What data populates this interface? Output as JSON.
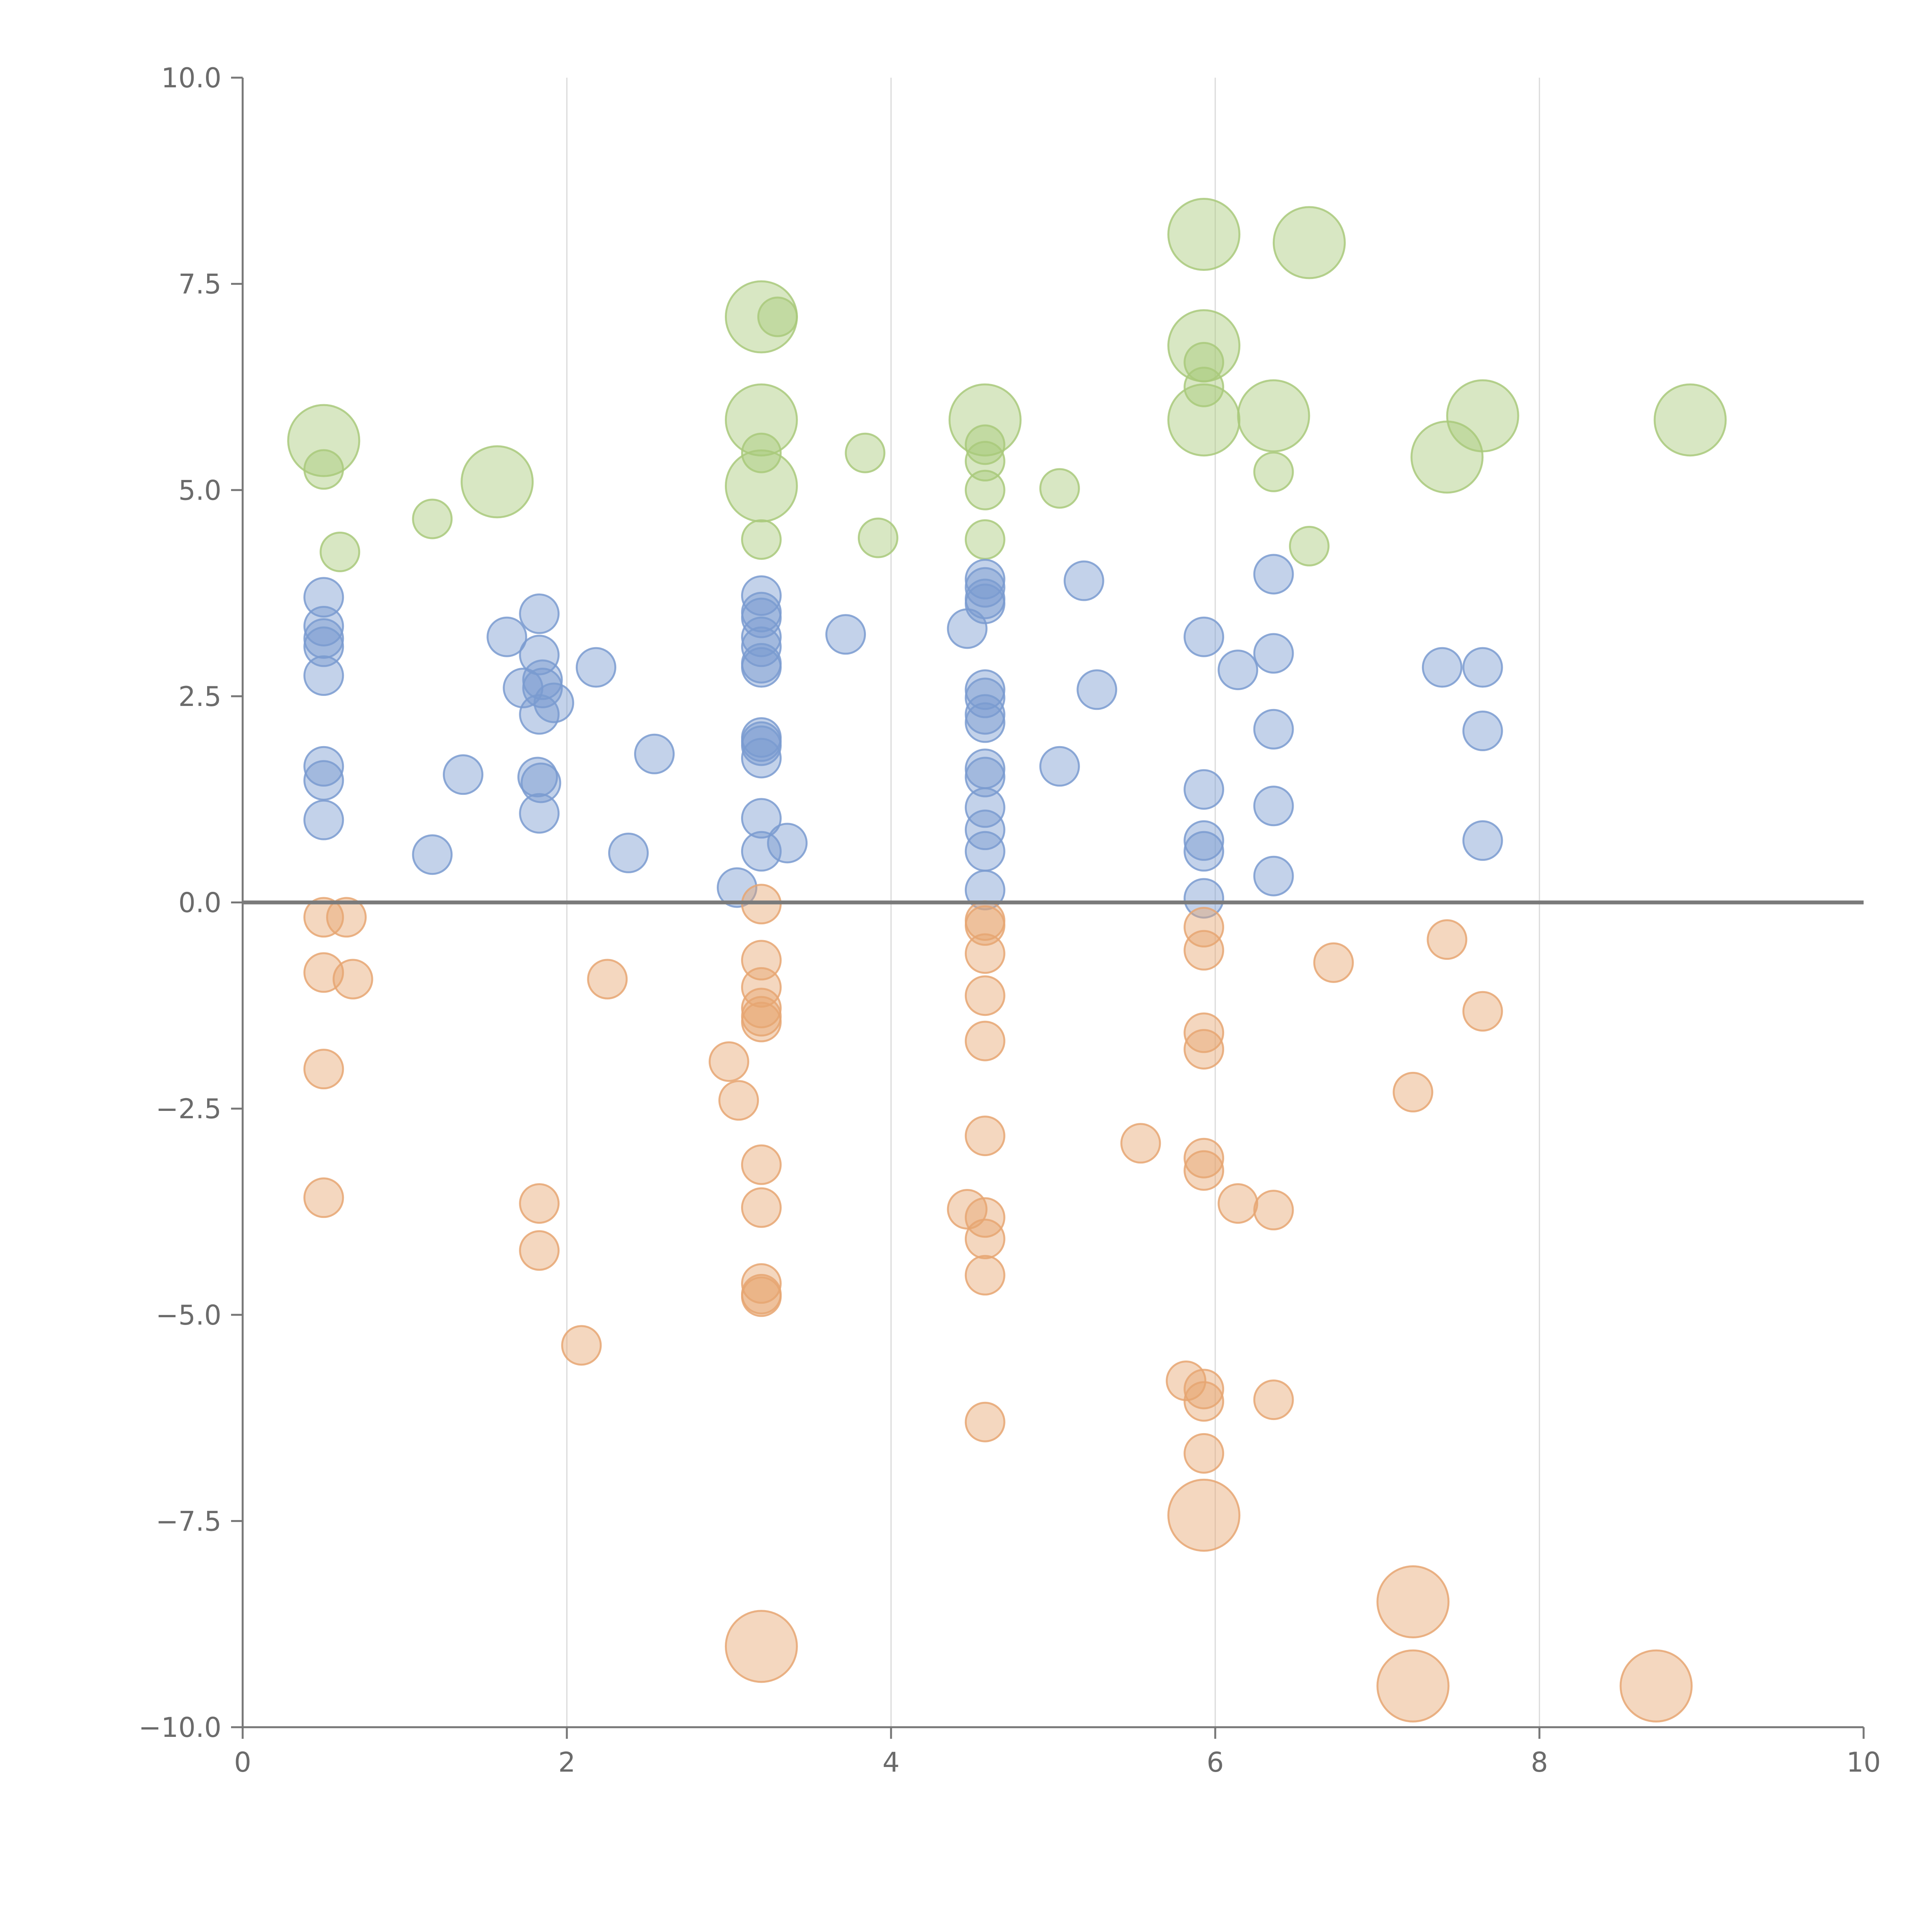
{
  "chart_data": {
    "type": "scatter",
    "title": "",
    "xlabel": "",
    "ylabel": "",
    "xlim": [
      0,
      10
    ],
    "ylim": [
      -10,
      10
    ],
    "x_ticks": [
      0,
      2,
      4,
      6,
      8,
      10
    ],
    "y_ticks": [
      -10,
      -7.5,
      -5,
      -2.5,
      0,
      2.5,
      5,
      7.5,
      10
    ],
    "x_tick_labels": [
      "0",
      "2",
      "4",
      "6",
      "8",
      "10"
    ],
    "y_tick_labels": [
      "−10.0",
      "−7.5",
      "−5.0",
      "−2.5",
      "0.0",
      "2.5",
      "5.0",
      "7.5",
      "10.0"
    ],
    "grid": "vertical",
    "reference_line_y": 0,
    "series": [
      {
        "name": "green",
        "color": "#a9c97b",
        "points": [
          [
            0.5,
            5.6,
            2
          ],
          [
            0.5,
            5.25,
            1
          ],
          [
            0.6,
            4.25,
            1
          ],
          [
            1.17,
            4.65,
            1
          ],
          [
            1.57,
            5.1,
            2
          ],
          [
            3.2,
            7.1,
            2
          ],
          [
            3.3,
            7.1,
            1
          ],
          [
            3.2,
            5.85,
            2
          ],
          [
            3.2,
            5.45,
            1
          ],
          [
            3.2,
            5.05,
            2
          ],
          [
            3.2,
            4.4,
            1
          ],
          [
            3.84,
            5.45,
            1
          ],
          [
            3.92,
            4.42,
            1
          ],
          [
            4.58,
            5.85,
            2
          ],
          [
            4.58,
            5.55,
            1
          ],
          [
            4.58,
            5.35,
            1
          ],
          [
            4.58,
            5.0,
            1
          ],
          [
            4.58,
            4.4,
            1
          ],
          [
            5.04,
            5.02,
            1
          ],
          [
            5.93,
            8.1,
            2
          ],
          [
            5.93,
            6.75,
            2
          ],
          [
            5.93,
            6.55,
            1
          ],
          [
            5.93,
            6.25,
            1
          ],
          [
            5.93,
            5.85,
            2
          ],
          [
            6.36,
            5.9,
            2
          ],
          [
            6.36,
            5.22,
            1
          ],
          [
            6.58,
            8.0,
            2
          ],
          [
            6.58,
            4.32,
            1
          ],
          [
            7.43,
            5.4,
            2
          ],
          [
            7.65,
            5.9,
            2
          ],
          [
            8.93,
            5.85,
            2
          ]
        ]
      },
      {
        "name": "blue",
        "color": "#7a9bd0",
        "points": [
          [
            0.5,
            3.7,
            1
          ],
          [
            0.5,
            3.35,
            1
          ],
          [
            0.5,
            3.2,
            1
          ],
          [
            0.5,
            3.1,
            1
          ],
          [
            0.5,
            2.75,
            1
          ],
          [
            0.5,
            1.65,
            1
          ],
          [
            0.5,
            1.48,
            1
          ],
          [
            0.5,
            1.0,
            1
          ],
          [
            1.17,
            0.58,
            1
          ],
          [
            1.36,
            1.55,
            1
          ],
          [
            1.63,
            3.22,
            1
          ],
          [
            1.73,
            2.6,
            1
          ],
          [
            1.83,
            3.5,
            1
          ],
          [
            1.83,
            3.0,
            1
          ],
          [
            1.85,
            2.7,
            1
          ],
          [
            1.85,
            2.6,
            1
          ],
          [
            1.83,
            2.28,
            1
          ],
          [
            1.92,
            2.42,
            1
          ],
          [
            1.82,
            1.52,
            1
          ],
          [
            1.84,
            1.45,
            1
          ],
          [
            1.83,
            1.08,
            1
          ],
          [
            2.18,
            2.85,
            1
          ],
          [
            2.38,
            0.6,
            1
          ],
          [
            2.54,
            1.8,
            1
          ],
          [
            3.2,
            3.72,
            1
          ],
          [
            3.2,
            3.52,
            1
          ],
          [
            3.2,
            3.45,
            1
          ],
          [
            3.2,
            3.22,
            1
          ],
          [
            3.2,
            3.1,
            1
          ],
          [
            3.2,
            2.9,
            1
          ],
          [
            3.2,
            2.85,
            1
          ],
          [
            3.2,
            2.0,
            1
          ],
          [
            3.2,
            1.95,
            1
          ],
          [
            3.2,
            1.9,
            1
          ],
          [
            3.2,
            1.75,
            1
          ],
          [
            3.2,
            1.02,
            1
          ],
          [
            3.2,
            0.62,
            1
          ],
          [
            3.36,
            0.72,
            1
          ],
          [
            3.05,
            0.18,
            1
          ],
          [
            3.72,
            3.25,
            1
          ],
          [
            4.47,
            3.32,
            1
          ],
          [
            4.58,
            3.92,
            1
          ],
          [
            4.58,
            3.82,
            1
          ],
          [
            4.58,
            3.68,
            1
          ],
          [
            4.58,
            3.62,
            1
          ],
          [
            4.58,
            2.58,
            1
          ],
          [
            4.58,
            2.48,
            1
          ],
          [
            4.58,
            2.28,
            1
          ],
          [
            4.58,
            2.18,
            1
          ],
          [
            4.58,
            1.62,
            1
          ],
          [
            4.58,
            1.52,
            1
          ],
          [
            4.58,
            1.15,
            1
          ],
          [
            4.58,
            0.88,
            1
          ],
          [
            4.58,
            0.62,
            1
          ],
          [
            4.58,
            0.15,
            1
          ],
          [
            5.04,
            1.65,
            1
          ],
          [
            5.19,
            3.9,
            1
          ],
          [
            5.27,
            2.58,
            1
          ],
          [
            5.93,
            3.22,
            1
          ],
          [
            5.93,
            1.37,
            1
          ],
          [
            5.93,
            0.75,
            1
          ],
          [
            5.93,
            0.62,
            1
          ],
          [
            5.93,
            0.05,
            1
          ],
          [
            6.14,
            2.82,
            1
          ],
          [
            6.36,
            3.98,
            1
          ],
          [
            6.36,
            3.02,
            1
          ],
          [
            6.36,
            2.1,
            1
          ],
          [
            6.36,
            1.17,
            1
          ],
          [
            6.36,
            0.32,
            1
          ],
          [
            7.4,
            2.85,
            1
          ],
          [
            7.65,
            2.85,
            1
          ],
          [
            7.65,
            2.08,
            1
          ],
          [
            7.65,
            0.75,
            1
          ]
        ]
      },
      {
        "name": "orange",
        "color": "#e6a672",
        "points": [
          [
            0.5,
            -0.18,
            1
          ],
          [
            0.64,
            -0.18,
            1
          ],
          [
            0.5,
            -0.85,
            1
          ],
          [
            0.68,
            -0.93,
            1
          ],
          [
            0.5,
            -2.02,
            1
          ],
          [
            0.5,
            -3.58,
            1
          ],
          [
            1.83,
            -3.65,
            1
          ],
          [
            1.83,
            -4.22,
            1
          ],
          [
            2.09,
            -5.37,
            1
          ],
          [
            2.25,
            -0.93,
            1
          ],
          [
            3.2,
            -0.02,
            1
          ],
          [
            3.2,
            -0.7,
            1
          ],
          [
            3.2,
            -1.03,
            1
          ],
          [
            3.2,
            -1.28,
            1
          ],
          [
            3.2,
            -1.38,
            1
          ],
          [
            3.2,
            -1.45,
            1
          ],
          [
            3.0,
            -1.93,
            1
          ],
          [
            3.06,
            -2.4,
            1
          ],
          [
            3.2,
            -3.18,
            1
          ],
          [
            3.2,
            -3.7,
            1
          ],
          [
            3.2,
            -4.62,
            1
          ],
          [
            3.2,
            -4.75,
            1
          ],
          [
            3.2,
            -4.78,
            1
          ],
          [
            3.2,
            -9.02,
            2
          ],
          [
            4.47,
            -3.72,
            1
          ],
          [
            4.58,
            -0.22,
            1
          ],
          [
            4.58,
            -0.28,
            1
          ],
          [
            4.58,
            -0.62,
            1
          ],
          [
            4.58,
            -1.13,
            1
          ],
          [
            4.58,
            -1.68,
            1
          ],
          [
            4.58,
            -2.83,
            1
          ],
          [
            4.58,
            -3.82,
            1
          ],
          [
            4.58,
            -4.08,
            1
          ],
          [
            4.58,
            -4.52,
            1
          ],
          [
            4.58,
            -6.3,
            1
          ],
          [
            5.54,
            -2.92,
            1
          ],
          [
            5.82,
            -5.8,
            1
          ],
          [
            5.93,
            -0.3,
            1
          ],
          [
            5.93,
            -0.58,
            1
          ],
          [
            5.93,
            -1.58,
            1
          ],
          [
            5.93,
            -1.78,
            1
          ],
          [
            5.93,
            -3.1,
            1
          ],
          [
            5.93,
            -3.25,
            1
          ],
          [
            5.93,
            -5.9,
            1
          ],
          [
            5.93,
            -6.05,
            1
          ],
          [
            5.93,
            -6.68,
            1
          ],
          [
            5.93,
            -7.43,
            2
          ],
          [
            6.14,
            -3.65,
            1
          ],
          [
            6.36,
            -3.73,
            1
          ],
          [
            6.36,
            -6.03,
            1
          ],
          [
            6.73,
            -0.73,
            1
          ],
          [
            7.22,
            -2.3,
            1
          ],
          [
            7.43,
            -0.45,
            1
          ],
          [
            7.65,
            -1.32,
            1
          ],
          [
            7.22,
            -8.48,
            2
          ],
          [
            7.22,
            -9.5,
            2
          ],
          [
            8.72,
            -9.5,
            2
          ]
        ]
      }
    ]
  }
}
